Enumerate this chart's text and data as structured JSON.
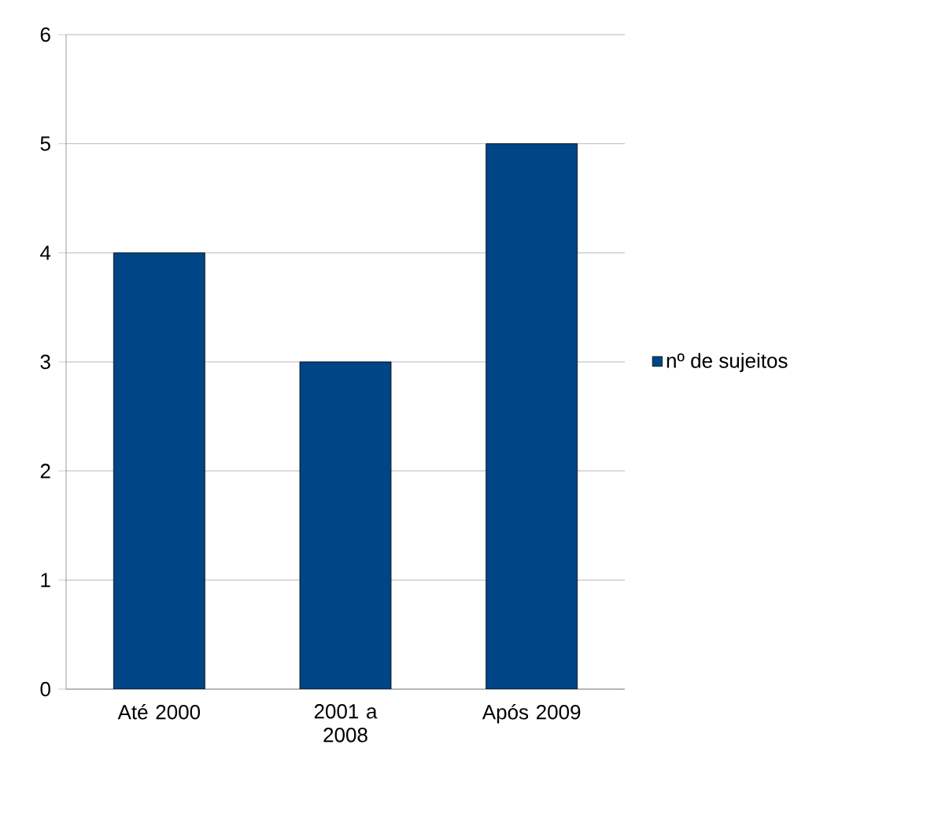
{
  "chart_data": {
    "type": "bar",
    "categories": [
      "Até 2000",
      "2001 a 2008",
      "Após 2009"
    ],
    "series": [
      {
        "name": "nº de sujeitos",
        "color": "#004586",
        "values": [
          4,
          3,
          5
        ]
      }
    ],
    "ylim": [
      0,
      6
    ],
    "yticks": [
      0,
      1,
      2,
      3,
      4,
      5,
      6
    ],
    "grid": "y",
    "legend": "right"
  }
}
